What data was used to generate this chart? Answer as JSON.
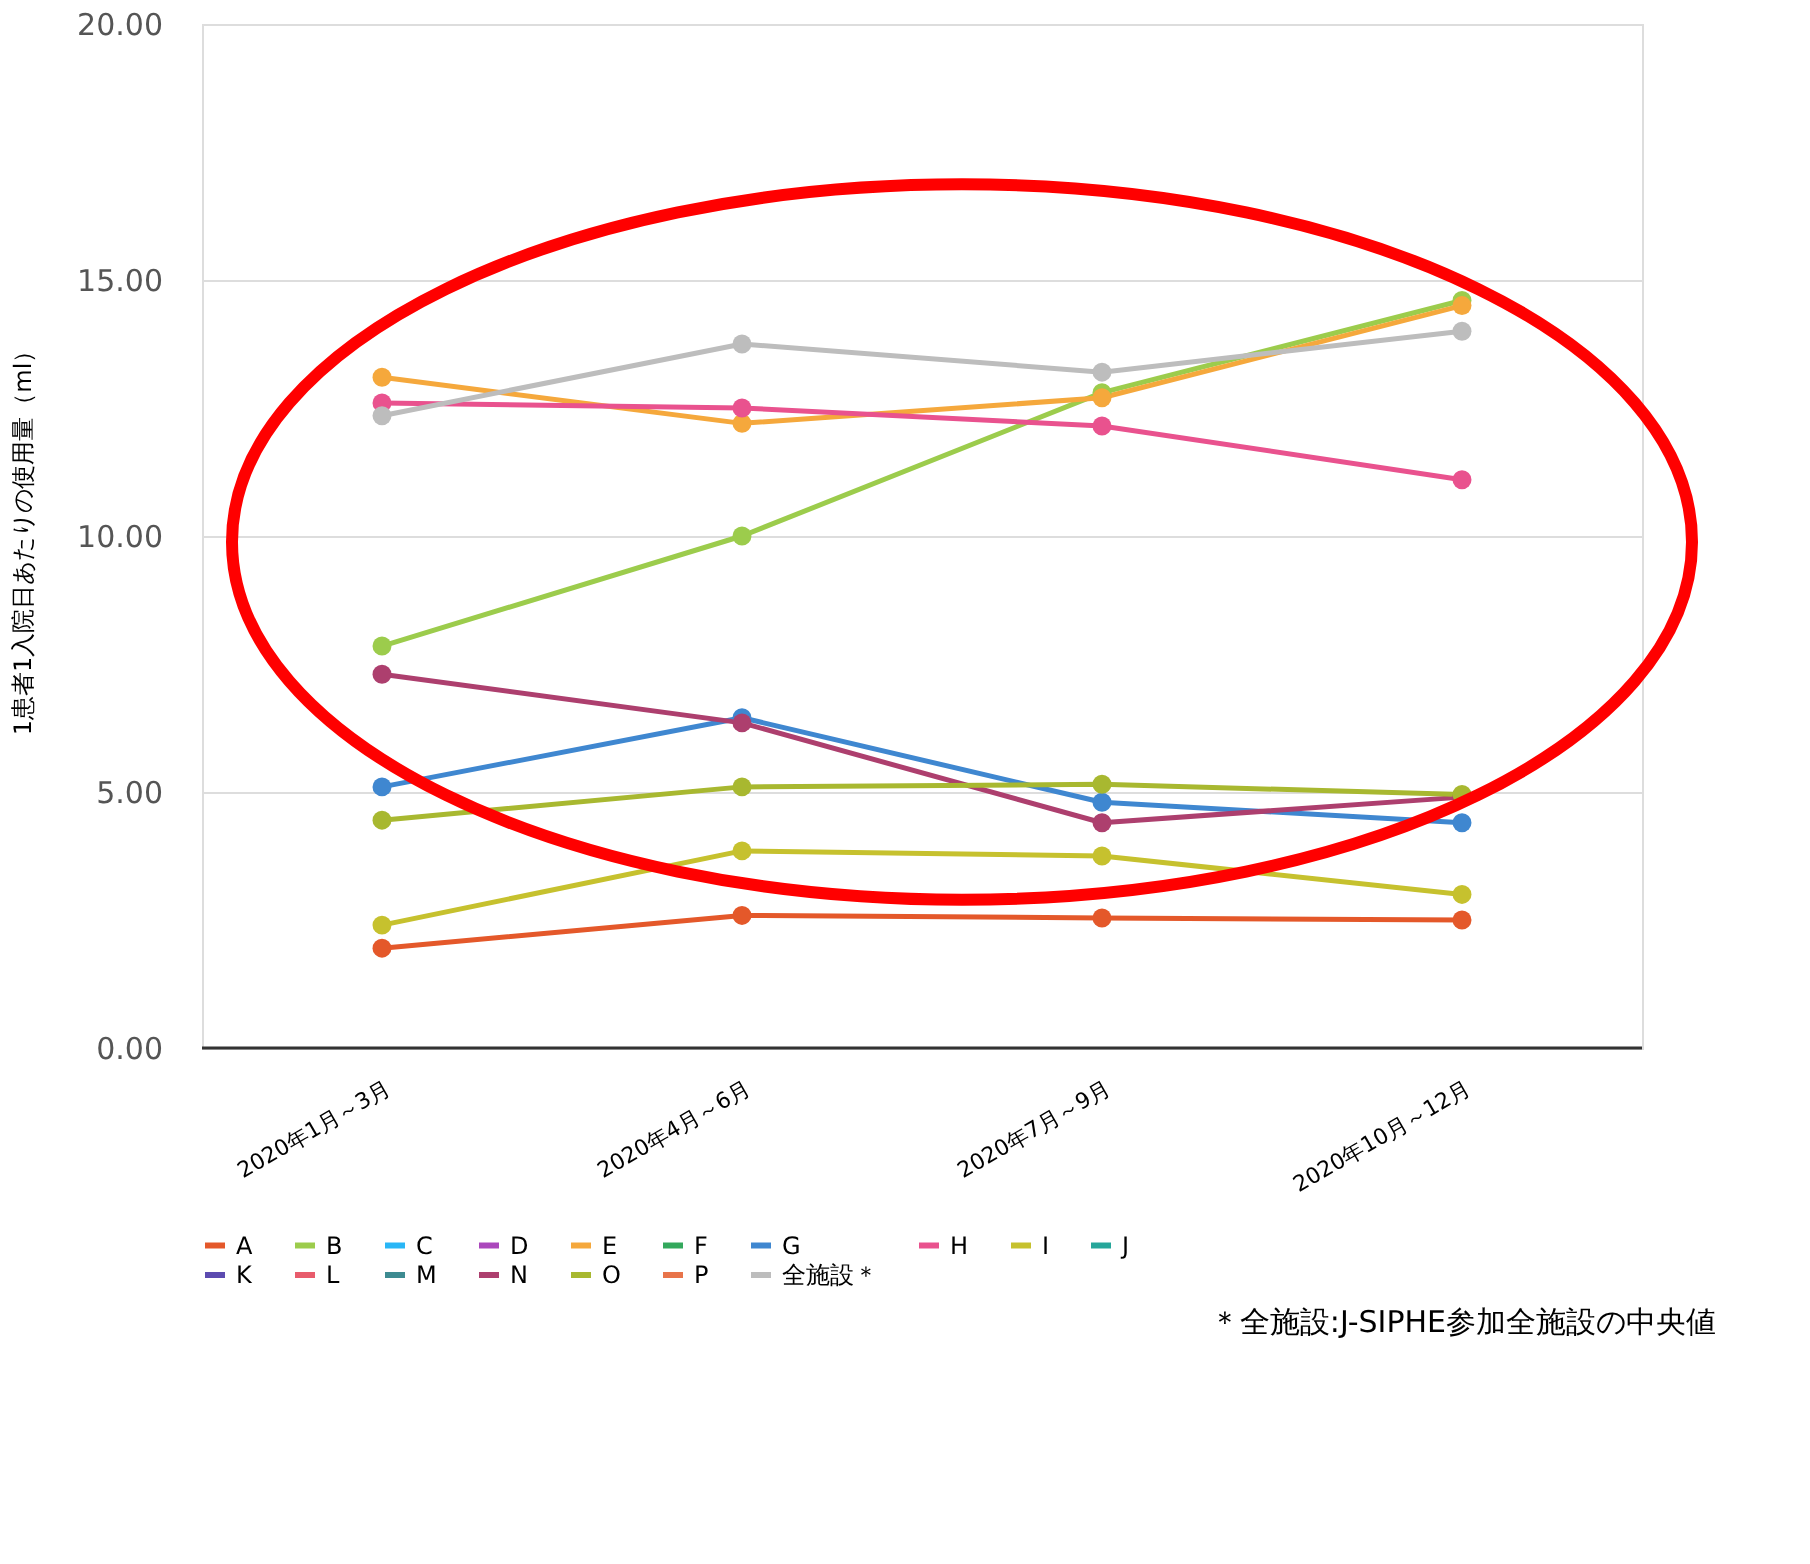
{
  "chart_data": {
    "type": "line",
    "ylabel": "1患者1入院日あたりの使用量（ml）",
    "categories": [
      "2020年1月～3月",
      "2020年4月～6月",
      "2020年7月～9月",
      "2020年10月～12月"
    ],
    "ylim": [
      0,
      20
    ],
    "yticks": [
      {
        "value": 0,
        "label": "0.00"
      },
      {
        "value": 5,
        "label": "5.00"
      },
      {
        "value": 10,
        "label": "10.00"
      },
      {
        "value": 15,
        "label": "15.00"
      },
      {
        "value": 20,
        "label": "20.00"
      }
    ],
    "grid": "y",
    "legend": "bottom",
    "marker": "circle",
    "line_style": "solid",
    "series": [
      {
        "name": "A",
        "color": "#e4582a",
        "values": [
          1.95,
          2.59,
          2.54,
          2.5
        ]
      },
      {
        "name": "B",
        "color": "#9ccc4c",
        "values": [
          7.85,
          10.0,
          12.8,
          14.6
        ]
      },
      {
        "name": "C",
        "color": "#29b6f6",
        "values": [
          null,
          null,
          null,
          null
        ]
      },
      {
        "name": "D",
        "color": "#ab47bc",
        "values": [
          null,
          null,
          null,
          null
        ]
      },
      {
        "name": "E",
        "color": "#f5a83c",
        "values": [
          13.1,
          12.2,
          12.7,
          14.5
        ]
      },
      {
        "name": "F",
        "color": "#33a85c",
        "values": [
          null,
          null,
          null,
          null
        ]
      },
      {
        "name": "G",
        "color": "#3f87d0",
        "values": [
          5.1,
          6.45,
          4.8,
          4.4
        ]
      },
      {
        "name": "H",
        "color": "#e9528e",
        "values": [
          12.6,
          12.5,
          12.15,
          11.1
        ]
      },
      {
        "name": "I",
        "color": "#c6c12e",
        "values": [
          2.4,
          3.85,
          3.75,
          3.0
        ]
      },
      {
        "name": "J",
        "color": "#26a69a",
        "values": [
          null,
          null,
          null,
          null
        ]
      },
      {
        "name": "K",
        "color": "#5c4bb0",
        "values": [
          null,
          null,
          null,
          null
        ]
      },
      {
        "name": "L",
        "color": "#e85c6c",
        "values": [
          null,
          null,
          null,
          null
        ]
      },
      {
        "name": "M",
        "color": "#3d8b91",
        "values": [
          null,
          null,
          null,
          null
        ]
      },
      {
        "name": "N",
        "color": "#ad3f6e",
        "values": [
          7.3,
          6.35,
          4.4,
          4.9
        ]
      },
      {
        "name": "O",
        "color": "#a8b830",
        "values": [
          4.45,
          5.1,
          5.15,
          4.95
        ]
      },
      {
        "name": "P",
        "color": "#e8744a",
        "values": [
          null,
          null,
          null,
          null
        ]
      },
      {
        "name": "全施設＊",
        "color": "#bdbdbd",
        "values": [
          12.35,
          13.75,
          13.2,
          14.0
        ]
      }
    ],
    "annotations": [
      "＊全施設:J-SIPHE参加全施設の中央値"
    ]
  }
}
